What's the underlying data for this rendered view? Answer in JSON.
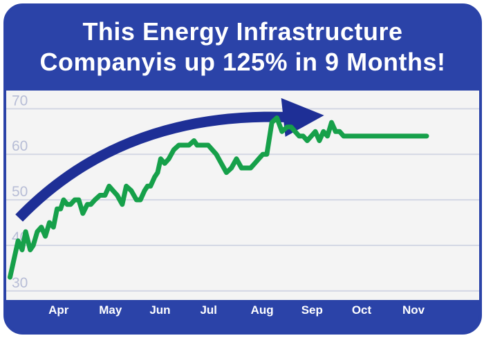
{
  "title": {
    "line1": "This Energy Infrastructure",
    "line2": "Companyis up 125% in 9 Months!"
  },
  "colors": {
    "frame": "#2b43a8",
    "plot_background": "#f4f4f4",
    "gridline": "#d3d7e4",
    "line": "#16a04a",
    "arrow": "#1e2f96",
    "y_tick_text": "#b7bdd6",
    "x_tick_text": "#ffffff"
  },
  "chart_data": {
    "type": "line",
    "title": "This Energy Infrastructure Companyis up 125% in 9 Months!",
    "xlabel": "",
    "ylabel": "",
    "ylim": [
      28,
      74
    ],
    "yticks": [
      30,
      40,
      50,
      60,
      70
    ],
    "grid": "horizontal",
    "x_domain": [
      0,
      9.3
    ],
    "month_ticks": [
      {
        "label": "Apr",
        "x": 1
      },
      {
        "label": "May",
        "x": 2
      },
      {
        "label": "Jun",
        "x": 3
      },
      {
        "label": "Jul",
        "x": 4
      },
      {
        "label": "Aug",
        "x": 5
      },
      {
        "label": "Sep",
        "x": 6
      },
      {
        "label": "Oct",
        "x": 7
      },
      {
        "label": "Nov",
        "x": 8
      }
    ],
    "series": [
      {
        "x": [
          0.02,
          0.1,
          0.18,
          0.26,
          0.33,
          0.42,
          0.48,
          0.56,
          0.64,
          0.72,
          0.8,
          0.88,
          0.95,
          1.02,
          1.08,
          1.15,
          1.22,
          1.3,
          1.38,
          1.46,
          1.55,
          1.62,
          1.7,
          1.8,
          1.9,
          1.98,
          2.06,
          2.14,
          2.24,
          2.32,
          2.42,
          2.52,
          2.6,
          2.68,
          2.74,
          2.8,
          2.88,
          2.94,
          3.0,
          3.08,
          3.16,
          3.26,
          3.36,
          3.46,
          3.56,
          3.66,
          3.72,
          3.78,
          3.86,
          3.94,
          4.02,
          4.1,
          4.2,
          4.3,
          4.4,
          4.5,
          4.6,
          4.7,
          4.78,
          4.86,
          4.94,
          5.02,
          5.1,
          5.2,
          5.3,
          5.4,
          5.5,
          5.58,
          5.66,
          5.74,
          5.82,
          5.9,
          5.98,
          6.06,
          6.14,
          6.22,
          6.3,
          6.38,
          6.46,
          6.54,
          6.62,
          6.68,
          6.74,
          6.8,
          6.86,
          6.92,
          6.98,
          7.04,
          7.1,
          7.18,
          7.26,
          7.34,
          7.42,
          7.5,
          7.58,
          7.64,
          7.7,
          7.78,
          7.86,
          7.94,
          8.02,
          8.1,
          8.18,
          8.26
        ],
        "values": [
          33,
          37,
          41,
          39,
          43,
          39,
          40,
          43,
          44,
          42,
          45,
          44,
          48,
          48,
          50,
          49,
          49,
          50,
          50,
          47,
          49,
          49,
          50,
          51,
          51,
          53,
          52,
          51,
          49,
          53,
          52,
          50,
          50,
          52,
          53,
          53,
          55,
          56,
          59,
          58,
          59,
          61,
          62,
          62,
          62,
          63,
          62,
          62,
          62,
          62,
          61,
          60,
          58,
          56,
          57,
          59,
          57,
          57,
          57,
          58,
          59,
          60,
          60,
          67,
          68,
          65,
          66,
          66,
          65,
          64,
          64,
          63,
          64,
          65,
          63,
          65,
          64,
          67,
          65,
          65,
          64,
          64,
          64,
          64,
          64,
          64,
          64,
          64,
          64,
          64,
          64,
          64,
          64,
          64,
          64,
          64,
          64,
          64,
          64,
          64,
          64,
          64,
          64,
          64
        ]
      }
    ],
    "annotations": [
      {
        "type": "arrow",
        "direction": "up-right",
        "start": [
          0.2,
          46
        ],
        "end": [
          6.15,
          69
        ]
      }
    ]
  }
}
